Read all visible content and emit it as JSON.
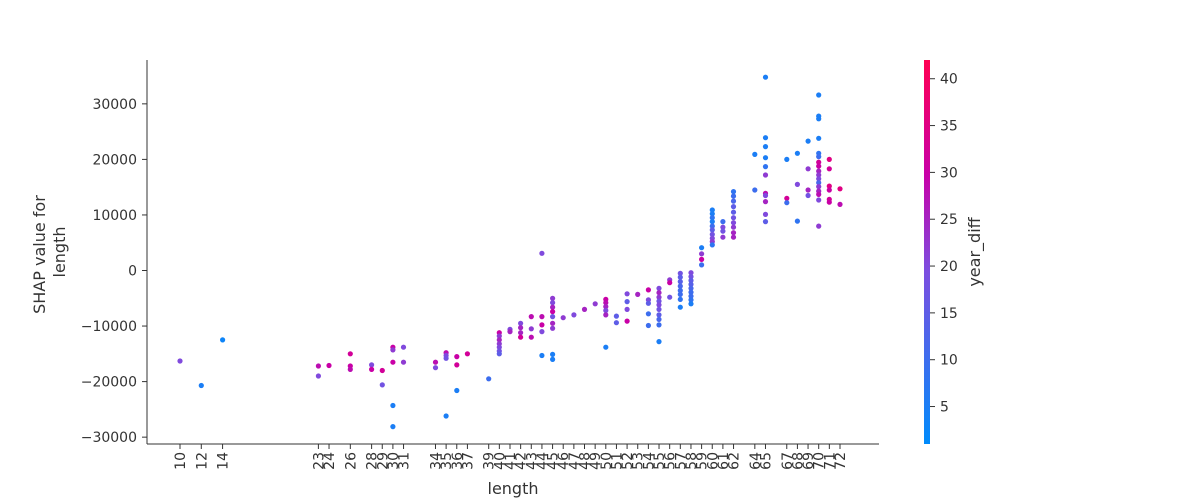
{
  "chart_data": {
    "type": "scatter",
    "title": "",
    "xlabel": "length",
    "ylabel_lines": [
      "SHAP value for",
      "length"
    ],
    "colorbar_label": "year_diff",
    "colorbar_ticks": [
      "5",
      "10",
      "15",
      "20",
      "25",
      "30",
      "35",
      "40"
    ],
    "colorbar_range": [
      1,
      42
    ],
    "colormap": [
      "#008bfb",
      "#ff0052"
    ],
    "x_ticks": [
      10,
      12,
      14,
      23,
      24,
      26,
      28,
      29,
      30,
      31,
      34,
      35,
      36,
      37,
      39,
      40,
      41,
      42,
      43,
      44,
      45,
      46,
      47,
      48,
      49,
      50,
      51,
      52,
      53,
      54,
      55,
      56,
      57,
      58,
      59,
      60,
      61,
      62,
      64,
      65,
      67,
      68,
      69,
      70,
      71,
      72
    ],
    "ylim": [
      -31500,
      38000
    ],
    "y_ticks": [
      "30000",
      "20000",
      "10000",
      "0",
      "−10000",
      "−20000",
      "−30000"
    ],
    "points": [
      [
        10,
        -16300,
        20
      ],
      [
        12,
        -20700,
        5
      ],
      [
        14,
        -12500,
        3
      ],
      [
        23,
        -17200,
        28
      ],
      [
        23,
        -19000,
        20
      ],
      [
        24,
        -17100,
        30
      ],
      [
        26,
        -15000,
        32
      ],
      [
        26,
        -17200,
        30
      ],
      [
        26,
        -17800,
        28
      ],
      [
        28,
        -17000,
        20
      ],
      [
        28,
        -17800,
        30
      ],
      [
        29,
        -18000,
        32
      ],
      [
        29,
        -20600,
        18
      ],
      [
        30,
        -13800,
        30
      ],
      [
        30,
        -14300,
        22
      ],
      [
        30,
        -16500,
        30
      ],
      [
        30,
        -24300,
        5
      ],
      [
        30,
        -28100,
        5
      ],
      [
        31,
        -13800,
        20
      ],
      [
        31,
        -16500,
        22
      ],
      [
        34,
        -16500,
        28
      ],
      [
        34,
        -17500,
        20
      ],
      [
        35,
        -14800,
        28
      ],
      [
        35,
        -15300,
        20
      ],
      [
        35,
        -15800,
        18
      ],
      [
        35,
        -26200,
        5
      ],
      [
        36,
        -15500,
        30
      ],
      [
        36,
        -17000,
        32
      ],
      [
        36,
        -21600,
        5
      ],
      [
        37,
        -15000,
        32
      ],
      [
        39,
        -19500,
        10
      ],
      [
        40,
        -11200,
        30
      ],
      [
        40,
        -11800,
        22
      ],
      [
        40,
        -12500,
        25
      ],
      [
        40,
        -13200,
        22
      ],
      [
        40,
        -13800,
        20
      ],
      [
        40,
        -14500,
        18
      ],
      [
        40,
        -15000,
        15
      ],
      [
        41,
        -10600,
        20
      ],
      [
        41,
        -11000,
        25
      ],
      [
        42,
        -9500,
        20
      ],
      [
        42,
        -10300,
        25
      ],
      [
        42,
        -11200,
        25
      ],
      [
        42,
        -12000,
        32
      ],
      [
        43,
        -8300,
        28
      ],
      [
        43,
        -10500,
        22
      ],
      [
        43,
        -12000,
        28
      ],
      [
        44,
        -8300,
        28
      ],
      [
        44,
        -9800,
        30
      ],
      [
        44,
        -11000,
        20
      ],
      [
        44,
        -15300,
        5
      ],
      [
        44,
        3100,
        20
      ],
      [
        45,
        -5000,
        22
      ],
      [
        45,
        -5800,
        20
      ],
      [
        45,
        -6600,
        25
      ],
      [
        45,
        -7400,
        30
      ],
      [
        45,
        -8300,
        18
      ],
      [
        45,
        -9500,
        25
      ],
      [
        45,
        -10400,
        22
      ],
      [
        45,
        -15100,
        5
      ],
      [
        45,
        -16000,
        5
      ],
      [
        46,
        -8500,
        22
      ],
      [
        47,
        -8000,
        20
      ],
      [
        48,
        -7000,
        25
      ],
      [
        49,
        -6000,
        22
      ],
      [
        50,
        -5200,
        30
      ],
      [
        50,
        -5800,
        28
      ],
      [
        50,
        -6500,
        25
      ],
      [
        50,
        -7200,
        20
      ],
      [
        50,
        -8000,
        25
      ],
      [
        50,
        -13800,
        5
      ],
      [
        51,
        -8200,
        15
      ],
      [
        51,
        -9400,
        15
      ],
      [
        52,
        -4200,
        20
      ],
      [
        52,
        -5600,
        15
      ],
      [
        52,
        -7000,
        20
      ],
      [
        52,
        -9100,
        30
      ],
      [
        53,
        -4300,
        25
      ],
      [
        54,
        -3500,
        30
      ],
      [
        54,
        -5300,
        20
      ],
      [
        54,
        -5900,
        15
      ],
      [
        54,
        -7800,
        10
      ],
      [
        54,
        -9900,
        10
      ],
      [
        55,
        -3200,
        20
      ],
      [
        55,
        -4000,
        25
      ],
      [
        55,
        -4800,
        22
      ],
      [
        55,
        -5500,
        18
      ],
      [
        55,
        -6200,
        20
      ],
      [
        55,
        -7000,
        18
      ],
      [
        55,
        -8000,
        15
      ],
      [
        55,
        -8800,
        12
      ],
      [
        55,
        -9800,
        10
      ],
      [
        55,
        -12800,
        5
      ],
      [
        56,
        -1700,
        22
      ],
      [
        56,
        -2200,
        30
      ],
      [
        56,
        -4800,
        18
      ],
      [
        57,
        -500,
        18
      ],
      [
        57,
        -1200,
        15
      ],
      [
        57,
        -2000,
        14
      ],
      [
        57,
        -2800,
        12
      ],
      [
        57,
        -3600,
        10
      ],
      [
        57,
        -4300,
        10
      ],
      [
        57,
        -5200,
        8
      ],
      [
        57,
        -6600,
        5
      ],
      [
        58,
        -400,
        20
      ],
      [
        58,
        -1100,
        18
      ],
      [
        58,
        -1800,
        15
      ],
      [
        58,
        -2500,
        14
      ],
      [
        58,
        -3200,
        12
      ],
      [
        58,
        -3900,
        10
      ],
      [
        58,
        -4600,
        10
      ],
      [
        58,
        -5300,
        8
      ],
      [
        58,
        -6000,
        5
      ],
      [
        59,
        4100,
        5
      ],
      [
        59,
        3000,
        22
      ],
      [
        59,
        2000,
        30
      ],
      [
        59,
        1000,
        10
      ],
      [
        60,
        10900,
        5
      ],
      [
        60,
        10200,
        5
      ],
      [
        60,
        9500,
        8
      ],
      [
        60,
        8800,
        5
      ],
      [
        60,
        8000,
        10
      ],
      [
        60,
        7300,
        15
      ],
      [
        60,
        6500,
        18
      ],
      [
        60,
        5800,
        20
      ],
      [
        60,
        5200,
        22
      ],
      [
        60,
        4600,
        8
      ],
      [
        61,
        8800,
        10
      ],
      [
        61,
        7800,
        20
      ],
      [
        61,
        7100,
        18
      ],
      [
        61,
        6000,
        22
      ],
      [
        62,
        14200,
        8
      ],
      [
        62,
        13400,
        10
      ],
      [
        62,
        12500,
        12
      ],
      [
        62,
        11500,
        15
      ],
      [
        62,
        10500,
        15
      ],
      [
        62,
        9500,
        18
      ],
      [
        62,
        8600,
        20
      ],
      [
        62,
        7800,
        22
      ],
      [
        62,
        6800,
        25
      ],
      [
        62,
        6000,
        25
      ],
      [
        64,
        20900,
        5
      ],
      [
        64,
        14500,
        10
      ],
      [
        65,
        34800,
        5
      ],
      [
        65,
        23900,
        5
      ],
      [
        65,
        22300,
        5
      ],
      [
        65,
        20300,
        5
      ],
      [
        65,
        18700,
        8
      ],
      [
        65,
        17200,
        22
      ],
      [
        65,
        13900,
        28
      ],
      [
        65,
        13500,
        20
      ],
      [
        65,
        12400,
        25
      ],
      [
        65,
        10100,
        20
      ],
      [
        65,
        8800,
        15
      ],
      [
        67,
        20000,
        5
      ],
      [
        67,
        13000,
        32
      ],
      [
        67,
        12200,
        10
      ],
      [
        68,
        21100,
        5
      ],
      [
        68,
        15500,
        20
      ],
      [
        68,
        8900,
        8
      ],
      [
        69,
        23300,
        5
      ],
      [
        69,
        18300,
        22
      ],
      [
        69,
        14500,
        25
      ],
      [
        69,
        13500,
        18
      ],
      [
        70,
        31600,
        5
      ],
      [
        70,
        27800,
        5
      ],
      [
        70,
        27300,
        5
      ],
      [
        70,
        23800,
        5
      ],
      [
        70,
        21100,
        8
      ],
      [
        70,
        20500,
        10
      ],
      [
        70,
        19500,
        32
      ],
      [
        70,
        18800,
        30
      ],
      [
        70,
        17900,
        25
      ],
      [
        70,
        17200,
        22
      ],
      [
        70,
        16500,
        20
      ],
      [
        70,
        15800,
        12
      ],
      [
        70,
        15100,
        22
      ],
      [
        70,
        14300,
        25
      ],
      [
        70,
        13700,
        28
      ],
      [
        70,
        12700,
        20
      ],
      [
        70,
        8000,
        22
      ],
      [
        71,
        20000,
        35
      ],
      [
        71,
        18300,
        32
      ],
      [
        71,
        15200,
        35
      ],
      [
        71,
        14500,
        30
      ],
      [
        71,
        12800,
        32
      ],
      [
        71,
        12300,
        30
      ],
      [
        72,
        14700,
        35
      ],
      [
        72,
        11900,
        28
      ]
    ]
  }
}
